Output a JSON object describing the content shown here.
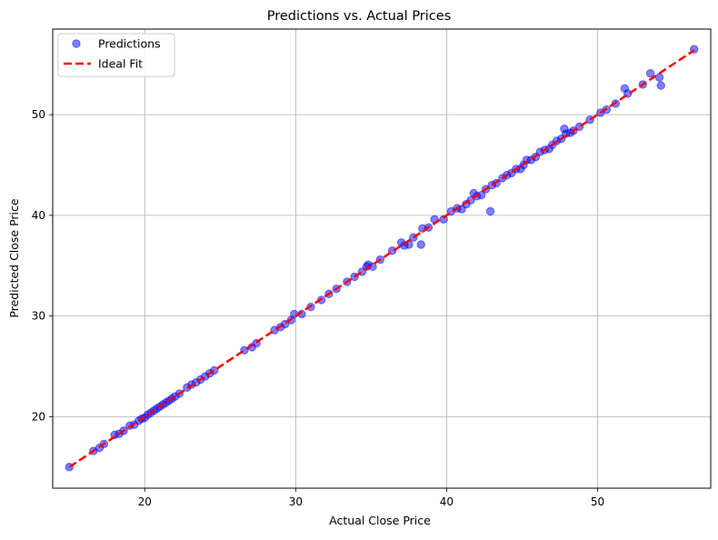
{
  "chart_data": {
    "type": "scatter",
    "title": "Predictions vs. Actual Prices",
    "xlabel": "Actual Close Price",
    "ylabel": "Predicted Close Price",
    "xlim": [
      13.9,
      57.5
    ],
    "ylim": [
      12.9,
      58.5
    ],
    "xticks": [
      20,
      30,
      40,
      50
    ],
    "yticks": [
      20,
      30,
      40,
      50
    ],
    "grid": true,
    "legend_position": "upper-left",
    "series": [
      {
        "name": "Predictions",
        "kind": "scatter",
        "color": "#0000ff",
        "alpha": 0.5,
        "points": [
          [
            15.0,
            15.0
          ],
          [
            16.6,
            16.6
          ],
          [
            17.0,
            16.9
          ],
          [
            17.3,
            17.3
          ],
          [
            18.0,
            18.2
          ],
          [
            18.3,
            18.3
          ],
          [
            18.6,
            18.6
          ],
          [
            19.0,
            19.1
          ],
          [
            19.3,
            19.2
          ],
          [
            19.6,
            19.6
          ],
          [
            19.8,
            19.8
          ],
          [
            20.0,
            19.9
          ],
          [
            20.2,
            20.2
          ],
          [
            20.4,
            20.4
          ],
          [
            20.6,
            20.6
          ],
          [
            20.8,
            20.8
          ],
          [
            21.0,
            21.0
          ],
          [
            21.2,
            21.2
          ],
          [
            21.4,
            21.4
          ],
          [
            21.6,
            21.6
          ],
          [
            21.8,
            21.8
          ],
          [
            22.0,
            22.0
          ],
          [
            22.3,
            22.3
          ],
          [
            22.8,
            22.9
          ],
          [
            23.1,
            23.2
          ],
          [
            23.4,
            23.4
          ],
          [
            23.7,
            23.7
          ],
          [
            24.0,
            24.0
          ],
          [
            24.3,
            24.3
          ],
          [
            24.6,
            24.6
          ],
          [
            26.6,
            26.6
          ],
          [
            27.1,
            26.9
          ],
          [
            27.4,
            27.3
          ],
          [
            28.6,
            28.6
          ],
          [
            29.0,
            28.9
          ],
          [
            29.3,
            29.2
          ],
          [
            29.7,
            29.6
          ],
          [
            29.9,
            30.2
          ],
          [
            30.4,
            30.2
          ],
          [
            31.0,
            30.9
          ],
          [
            31.7,
            31.6
          ],
          [
            32.2,
            32.2
          ],
          [
            32.7,
            32.7
          ],
          [
            33.4,
            33.4
          ],
          [
            33.9,
            33.9
          ],
          [
            34.4,
            34.4
          ],
          [
            34.7,
            34.9
          ],
          [
            34.8,
            35.1
          ],
          [
            35.1,
            34.9
          ],
          [
            35.6,
            35.6
          ],
          [
            36.4,
            36.5
          ],
          [
            37.0,
            37.3
          ],
          [
            37.2,
            37.0
          ],
          [
            37.5,
            37.1
          ],
          [
            37.8,
            37.8
          ],
          [
            38.3,
            37.1
          ],
          [
            38.4,
            38.7
          ],
          [
            38.8,
            38.8
          ],
          [
            39.2,
            39.6
          ],
          [
            39.8,
            39.6
          ],
          [
            40.3,
            40.4
          ],
          [
            40.7,
            40.7
          ],
          [
            41.0,
            40.6
          ],
          [
            41.3,
            41.1
          ],
          [
            41.6,
            41.5
          ],
          [
            41.8,
            42.2
          ],
          [
            42.0,
            41.9
          ],
          [
            42.3,
            42.0
          ],
          [
            42.6,
            42.6
          ],
          [
            42.9,
            40.4
          ],
          [
            43.0,
            43.0
          ],
          [
            43.3,
            43.2
          ],
          [
            43.7,
            43.7
          ],
          [
            44.0,
            44.0
          ],
          [
            44.3,
            44.2
          ],
          [
            44.6,
            44.6
          ],
          [
            44.9,
            44.6
          ],
          [
            45.1,
            45.0
          ],
          [
            45.3,
            45.5
          ],
          [
            45.6,
            45.5
          ],
          [
            45.9,
            45.8
          ],
          [
            46.2,
            46.3
          ],
          [
            46.5,
            46.5
          ],
          [
            46.8,
            46.6
          ],
          [
            47.0,
            47.0
          ],
          [
            47.3,
            47.4
          ],
          [
            47.6,
            47.6
          ],
          [
            47.8,
            48.6
          ],
          [
            47.9,
            48.1
          ],
          [
            48.2,
            48.2
          ],
          [
            48.4,
            48.4
          ],
          [
            48.8,
            48.8
          ],
          [
            49.5,
            49.5
          ],
          [
            50.2,
            50.2
          ],
          [
            50.6,
            50.5
          ],
          [
            51.2,
            51.1
          ],
          [
            51.8,
            52.6
          ],
          [
            52.0,
            52.1
          ],
          [
            53.0,
            53.0
          ],
          [
            53.5,
            54.1
          ],
          [
            54.1,
            53.7
          ],
          [
            54.2,
            52.9
          ],
          [
            56.4,
            56.5
          ]
        ]
      },
      {
        "name": "Ideal Fit",
        "kind": "line",
        "color": "#ff0000",
        "dashed": true,
        "points": [
          [
            15.0,
            15.0
          ],
          [
            56.4,
            56.4
          ]
        ]
      }
    ]
  }
}
